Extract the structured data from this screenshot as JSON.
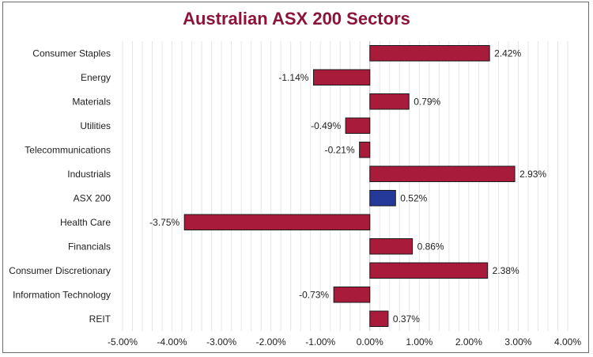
{
  "chart_data": {
    "type": "bar",
    "orientation": "horizontal",
    "title": "Australian ASX 200 Sectors",
    "categories": [
      "Consumer Staples",
      "Energy",
      "Materials",
      "Utilities",
      "Telecommunications",
      "Industrials",
      "ASX 200",
      "Health Care",
      "Financials",
      "Consumer Discretionary",
      "Information Technology",
      "REIT"
    ],
    "values": [
      2.42,
      -1.14,
      0.79,
      -0.49,
      -0.21,
      2.93,
      0.52,
      -3.75,
      0.86,
      2.38,
      -0.73,
      0.37
    ],
    "data_labels": [
      "2.42%",
      "-1.14%",
      "0.79%",
      "-0.49%",
      "-0.21%",
      "2.93%",
      "0.52%",
      "-3.75%",
      "0.86%",
      "2.38%",
      "-0.73%",
      "0.37%"
    ],
    "xlim": [
      -5,
      4
    ],
    "x_ticks": [
      -5,
      -4,
      -3,
      -2,
      -1,
      0,
      1,
      2,
      3,
      4
    ],
    "x_tick_labels": [
      "-5.00%",
      "-4.00%",
      "-3.00%",
      "-2.00%",
      "-1.00%",
      "0.00%",
      "1.00%",
      "2.00%",
      "3.00%",
      "4.00%"
    ],
    "xlabel": "",
    "ylabel": "",
    "grid": true,
    "legend": "none",
    "highlight_category": "ASX 200",
    "colors": {
      "bar": "#A91B3A",
      "highlight": "#25399A",
      "title": "#8B1538",
      "grid": "#E6E6E6",
      "bar_border": "#1a1a1a"
    }
  }
}
